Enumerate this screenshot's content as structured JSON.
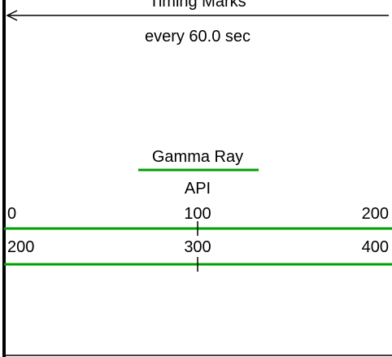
{
  "header": {
    "title": "Timing Marks",
    "subtitle": "every 60.0 sec"
  },
  "track": {
    "curve": "Gamma Ray",
    "unit": "API",
    "scales": [
      {
        "left": 0,
        "middle": 100,
        "right": 200
      },
      {
        "left": 200,
        "middle": 300,
        "right": 400
      }
    ]
  }
}
